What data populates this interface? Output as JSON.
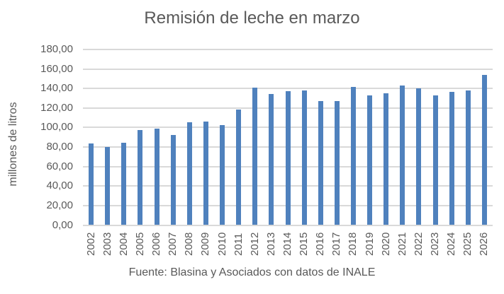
{
  "chart": {
    "title": "Remisión de leche en marzo",
    "ylabel": "millones de litros",
    "source": "Fuente: Blasina y Asociados con datos de INALE",
    "bar_color": "#4f81bd",
    "grid_color": "#d9d9d9",
    "y_ticks": [
      "180,00",
      "160,00",
      "140,00",
      "120,00",
      "100,00",
      "80,00",
      "60,00",
      "40,00",
      "20,00",
      "0,00"
    ]
  },
  "chart_data": {
    "type": "bar",
    "title": "Remisión de leche en marzo",
    "xlabel": "",
    "ylabel": "millones de litros",
    "ylim": [
      0,
      180
    ],
    "yticks": [
      0,
      20,
      40,
      60,
      80,
      100,
      120,
      140,
      160,
      180
    ],
    "grid": true,
    "legend": null,
    "annotation": "Fuente: Blasina y Asociados con datos de INALE",
    "categories": [
      "2002",
      "2003",
      "2004",
      "2005",
      "2006",
      "2007",
      "2008",
      "2009",
      "2010",
      "2011",
      "2012",
      "2013",
      "2014",
      "2015",
      "2016",
      "2017",
      "2018",
      "2019",
      "2020",
      "2021",
      "2022",
      "2023",
      "2024",
      "2025",
      "2026"
    ],
    "values": [
      83.8,
      80.2,
      84.5,
      97.6,
      99.1,
      92.5,
      105.6,
      106.3,
      102.7,
      118.6,
      141.2,
      134.6,
      137.5,
      138.2,
      127.4,
      127.4,
      141.9,
      133.1,
      135.3,
      143.3,
      140.4,
      133.1,
      136.8,
      138.2,
      154.2
    ]
  }
}
